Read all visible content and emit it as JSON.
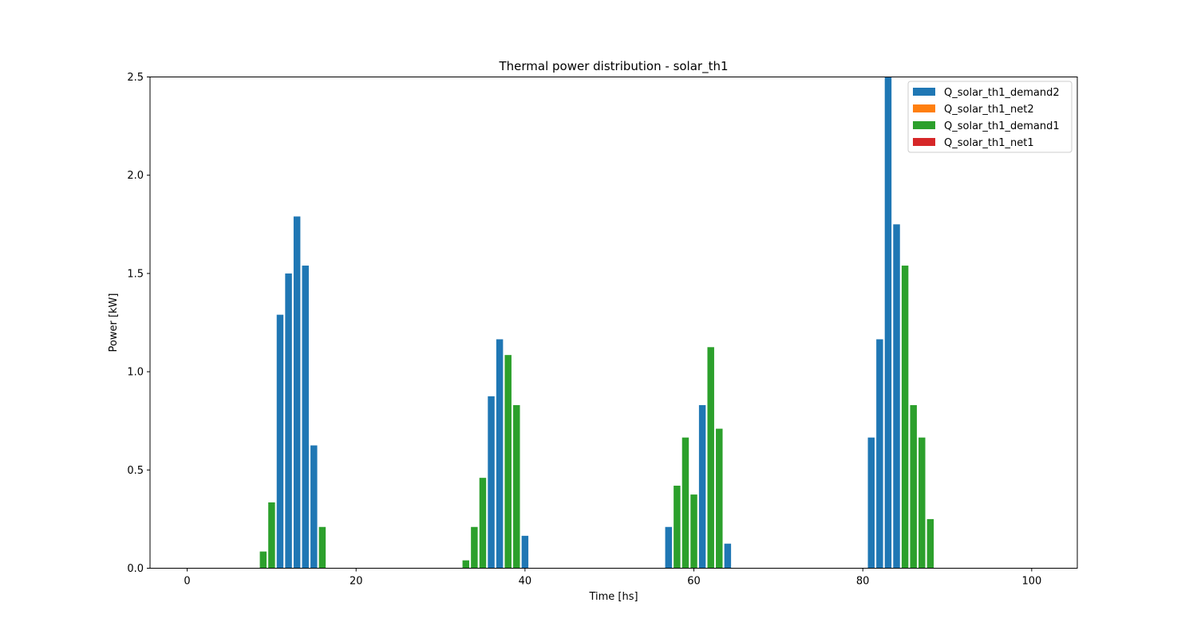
{
  "chart_data": {
    "type": "bar",
    "title": "Thermal power distribution - solar_th1",
    "xlabel": "Time [hs]",
    "ylabel": "Power [kW]",
    "xlim": [
      -4.4,
      105.4
    ],
    "ylim": [
      0,
      2.5
    ],
    "xticks": [
      0,
      20,
      40,
      60,
      80,
      100
    ],
    "yticks": [
      0.0,
      0.5,
      1.0,
      1.5,
      2.0,
      2.5
    ],
    "grid": false,
    "legend_position": "top-right",
    "series": [
      {
        "name": "Q_solar_th1_demand2",
        "color": "#1f77b4",
        "points": [
          [
            11,
            1.29
          ],
          [
            12,
            1.5
          ],
          [
            13,
            1.79
          ],
          [
            14,
            1.54
          ],
          [
            15,
            0.625
          ],
          [
            36,
            0.875
          ],
          [
            37,
            1.165
          ],
          [
            40,
            0.165
          ],
          [
            57,
            0.21
          ],
          [
            61,
            0.83
          ],
          [
            64,
            0.125
          ],
          [
            81,
            0.665
          ],
          [
            82,
            1.165
          ],
          [
            83,
            2.5
          ],
          [
            84,
            1.75
          ]
        ]
      },
      {
        "name": "Q_solar_th1_net2",
        "color": "#ff7f0e",
        "points": []
      },
      {
        "name": "Q_solar_th1_demand1",
        "color": "#2ca02c",
        "points": [
          [
            9,
            0.085
          ],
          [
            10,
            0.335
          ],
          [
            16,
            0.21
          ],
          [
            33,
            0.04
          ],
          [
            34,
            0.21
          ],
          [
            35,
            0.46
          ],
          [
            38,
            1.085
          ],
          [
            39,
            0.83
          ],
          [
            58,
            0.42
          ],
          [
            59,
            0.665
          ],
          [
            60,
            0.375
          ],
          [
            62,
            1.125
          ],
          [
            63,
            0.71
          ],
          [
            85,
            1.54
          ],
          [
            86,
            0.83
          ],
          [
            87,
            0.665
          ],
          [
            88,
            0.25
          ]
        ]
      },
      {
        "name": "Q_solar_th1_net1",
        "color": "#d62728",
        "points": []
      }
    ]
  }
}
